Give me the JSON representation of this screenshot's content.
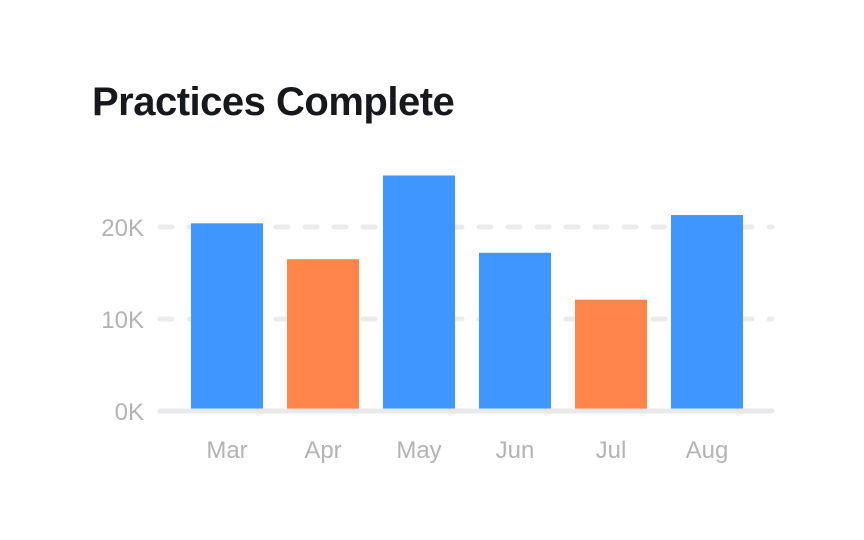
{
  "title": "Practices Complete",
  "chart_data": {
    "type": "bar",
    "title": "Practices Complete",
    "xlabel": "",
    "ylabel": "",
    "categories": [
      "Mar",
      "Apr",
      "May",
      "Jun",
      "Jul",
      "Aug"
    ],
    "values": [
      20400,
      16500,
      25600,
      17200,
      12100,
      21300
    ],
    "bar_colors": [
      "#4096ff",
      "#ff854a",
      "#4096ff",
      "#4096ff",
      "#ff854a",
      "#4096ff"
    ],
    "ylim": [
      0,
      26000
    ],
    "yticks": [
      0,
      10000,
      20000
    ],
    "ytick_labels": [
      "0K",
      "10K",
      "20K"
    ],
    "grid": true,
    "grid_style": "dashed",
    "legend": "none"
  }
}
